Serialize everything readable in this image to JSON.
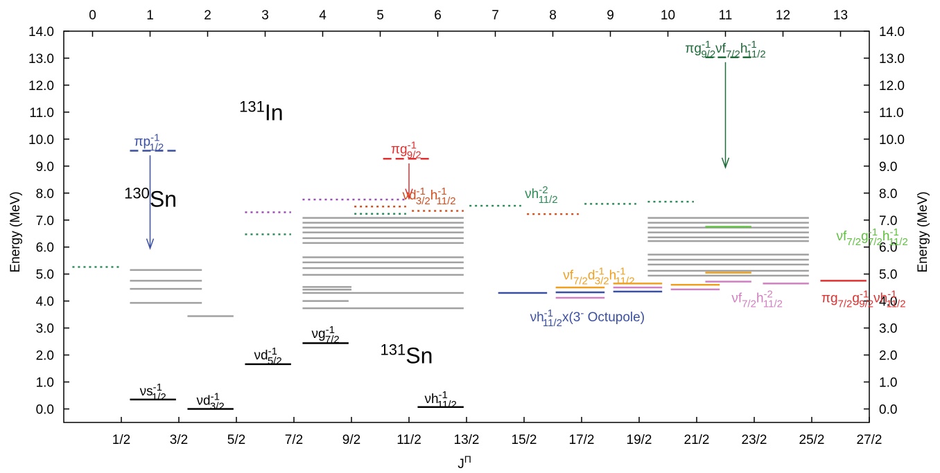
{
  "chart_data": {
    "type": "level-scheme",
    "xlabel": "J",
    "xlabel_sup": "Π",
    "ylabel": "Energy (MeV)",
    "ylim": [
      -0.5,
      14.0
    ],
    "bottom_x_ticks": [
      "1/2",
      "3/2",
      "5/2",
      "7/2",
      "9/2",
      "11/2",
      "13/2",
      "15/2",
      "17/2",
      "19/2",
      "21/2",
      "23/2",
      "25/2",
      "27/2"
    ],
    "top_x_ticks": [
      "0",
      "1",
      "2",
      "3",
      "4",
      "5",
      "6",
      "7",
      "8",
      "9",
      "10",
      "11",
      "12",
      "13"
    ],
    "y_ticks": [
      "0.0",
      "1.0",
      "2.0",
      "3.0",
      "4.0",
      "5.0",
      "6.0",
      "7.0",
      "8.0",
      "9.0",
      "10.0",
      "11.0",
      "12.0",
      "13.0",
      "14.0"
    ],
    "colors": {
      "black": "#000000",
      "gray": "#a0a0a0",
      "blue": "#3b4fa0",
      "red": "#e03030",
      "darkgreen": "#1f6b3a",
      "teal": "#2e8b57",
      "purple": "#9b4fb5",
      "brown": "#d05020",
      "orange": "#f0a020",
      "pink": "#d080c0",
      "lightgreen": "#60c040"
    },
    "nuclide_labels": [
      {
        "id": "in131",
        "mass": "131",
        "element": "In",
        "x": 3.05,
        "y": 10.7
      },
      {
        "id": "sn130",
        "mass": "130",
        "element": "Sn",
        "x": 1.05,
        "y": 7.5
      },
      {
        "id": "sn131",
        "mass": "131",
        "element": "Sn",
        "x": 5.5,
        "y": 1.7
      }
    ],
    "levels": [
      {
        "x1": 1.15,
        "x2": 1.95,
        "y": 0.35,
        "color": "black",
        "style": "solid",
        "width": 2.5
      },
      {
        "x1": 2.15,
        "x2": 2.95,
        "y": 0.0,
        "color": "black",
        "style": "solid",
        "width": 2.5
      },
      {
        "x1": 3.15,
        "x2": 3.95,
        "y": 1.66,
        "color": "black",
        "style": "solid",
        "width": 2.5
      },
      {
        "x1": 4.15,
        "x2": 4.95,
        "y": 2.44,
        "color": "black",
        "style": "solid",
        "width": 2.5
      },
      {
        "x1": 6.15,
        "x2": 6.95,
        "y": 0.07,
        "color": "black",
        "style": "solid",
        "width": 2.5
      },
      {
        "x1": 1.15,
        "x2": 2.4,
        "y": 5.15,
        "color": "gray",
        "style": "solid",
        "width": 2.5
      },
      {
        "x1": 1.15,
        "x2": 2.4,
        "y": 4.75,
        "color": "gray",
        "style": "solid",
        "width": 2.5
      },
      {
        "x1": 1.15,
        "x2": 2.4,
        "y": 4.45,
        "color": "gray",
        "style": "solid",
        "width": 2.5
      },
      {
        "x1": 1.15,
        "x2": 2.4,
        "y": 3.93,
        "color": "gray",
        "style": "solid",
        "width": 2.5
      },
      {
        "x1": 2.15,
        "x2": 2.95,
        "y": 3.44,
        "color": "gray",
        "style": "solid",
        "width": 2.5
      },
      {
        "x1": 4.15,
        "x2": 6.95,
        "y": 7.08,
        "color": "gray",
        "style": "solid",
        "width": 2.5
      },
      {
        "x1": 4.15,
        "x2": 6.95,
        "y": 6.9,
        "color": "gray",
        "style": "solid",
        "width": 2.5
      },
      {
        "x1": 4.15,
        "x2": 6.95,
        "y": 6.72,
        "color": "gray",
        "style": "solid",
        "width": 2.5
      },
      {
        "x1": 4.15,
        "x2": 6.95,
        "y": 6.54,
        "color": "gray",
        "style": "solid",
        "width": 2.5
      },
      {
        "x1": 4.15,
        "x2": 6.95,
        "y": 6.33,
        "color": "gray",
        "style": "solid",
        "width": 2.5
      },
      {
        "x1": 4.15,
        "x2": 6.95,
        "y": 6.15,
        "color": "gray",
        "style": "solid",
        "width": 2.5
      },
      {
        "x1": 4.15,
        "x2": 6.95,
        "y": 5.62,
        "color": "gray",
        "style": "solid",
        "width": 2.5
      },
      {
        "x1": 4.15,
        "x2": 6.95,
        "y": 5.43,
        "color": "gray",
        "style": "solid",
        "width": 2.5
      },
      {
        "x1": 4.15,
        "x2": 6.95,
        "y": 5.22,
        "color": "gray",
        "style": "solid",
        "width": 2.5
      },
      {
        "x1": 4.15,
        "x2": 6.95,
        "y": 4.97,
        "color": "gray",
        "style": "solid",
        "width": 2.5
      },
      {
        "x1": 4.15,
        "x2": 5.0,
        "y": 4.52,
        "color": "gray",
        "style": "solid",
        "width": 2.5
      },
      {
        "x1": 4.15,
        "x2": 5.0,
        "y": 4.42,
        "color": "gray",
        "style": "solid",
        "width": 2.5
      },
      {
        "x1": 4.15,
        "x2": 6.95,
        "y": 4.3,
        "color": "gray",
        "style": "solid",
        "width": 2.5
      },
      {
        "x1": 4.15,
        "x2": 4.95,
        "y": 4.0,
        "color": "gray",
        "style": "solid",
        "width": 2.5
      },
      {
        "x1": 4.15,
        "x2": 6.95,
        "y": 3.73,
        "color": "gray",
        "style": "solid",
        "width": 2.5
      },
      {
        "x1": 10.15,
        "x2": 12.95,
        "y": 7.08,
        "color": "gray",
        "style": "solid",
        "width": 2.5
      },
      {
        "x1": 10.15,
        "x2": 12.95,
        "y": 6.9,
        "color": "gray",
        "style": "solid",
        "width": 2.5
      },
      {
        "x1": 10.15,
        "x2": 12.95,
        "y": 6.72,
        "color": "gray",
        "style": "solid",
        "width": 2.5
      },
      {
        "x1": 10.15,
        "x2": 12.95,
        "y": 6.54,
        "color": "gray",
        "style": "solid",
        "width": 2.5
      },
      {
        "x1": 10.15,
        "x2": 12.95,
        "y": 6.36,
        "color": "gray",
        "style": "solid",
        "width": 2.5
      },
      {
        "x1": 10.15,
        "x2": 12.95,
        "y": 6.22,
        "color": "gray",
        "style": "solid",
        "width": 2.5
      },
      {
        "x1": 10.15,
        "x2": 12.95,
        "y": 5.72,
        "color": "gray",
        "style": "solid",
        "width": 2.5
      },
      {
        "x1": 10.15,
        "x2": 12.95,
        "y": 5.53,
        "color": "gray",
        "style": "solid",
        "width": 2.5
      },
      {
        "x1": 10.15,
        "x2": 12.95,
        "y": 5.35,
        "color": "gray",
        "style": "solid",
        "width": 2.5
      },
      {
        "x1": 10.15,
        "x2": 12.95,
        "y": 5.12,
        "color": "gray",
        "style": "solid",
        "width": 2.5
      },
      {
        "x1": 10.15,
        "x2": 12.95,
        "y": 4.94,
        "color": "gray",
        "style": "solid",
        "width": 2.5
      },
      {
        "x1": 1.15,
        "x2": 1.95,
        "y": 9.57,
        "color": "blue",
        "style": "dashed",
        "width": 2.5
      },
      {
        "x1": 5.55,
        "x2": 6.4,
        "y": 9.27,
        "color": "red",
        "style": "dashed",
        "width": 2.5
      },
      {
        "x1": 11.15,
        "x2": 11.95,
        "y": 13.03,
        "color": "darkgreen",
        "style": "dashed",
        "width": 2.5
      },
      {
        "x1": 0.15,
        "x2": 1.0,
        "y": 5.26,
        "color": "teal",
        "style": "dotted",
        "width": 2.5
      },
      {
        "x1": 3.15,
        "x2": 3.95,
        "y": 6.47,
        "color": "teal",
        "style": "dotted",
        "width": 2.5
      },
      {
        "x1": 3.15,
        "x2": 3.95,
        "y": 7.29,
        "color": "purple",
        "style": "dotted",
        "width": 2.5
      },
      {
        "x1": 4.15,
        "x2": 5.95,
        "y": 7.76,
        "color": "purple",
        "style": "dotted",
        "width": 2.5
      },
      {
        "x1": 5.05,
        "x2": 5.95,
        "y": 7.5,
        "color": "brown",
        "style": "dotted",
        "width": 2.5
      },
      {
        "x1": 5.05,
        "x2": 5.95,
        "y": 7.23,
        "color": "teal",
        "style": "dotted",
        "width": 2.5
      },
      {
        "x1": 6.05,
        "x2": 6.95,
        "y": 7.34,
        "color": "brown",
        "style": "dotted",
        "width": 2.5
      },
      {
        "x1": 7.05,
        "x2": 7.95,
        "y": 7.53,
        "color": "teal",
        "style": "dotted",
        "width": 2.5
      },
      {
        "x1": 8.05,
        "x2": 8.95,
        "y": 7.22,
        "color": "brown",
        "style": "dotted",
        "width": 2.5
      },
      {
        "x1": 9.05,
        "x2": 9.95,
        "y": 7.6,
        "color": "teal",
        "style": "dotted",
        "width": 2.5
      },
      {
        "x1": 10.15,
        "x2": 10.95,
        "y": 7.68,
        "color": "teal",
        "style": "dotted",
        "width": 2.5
      },
      {
        "x1": 7.55,
        "x2": 8.4,
        "y": 4.3,
        "color": "blue",
        "style": "solid",
        "width": 2.5
      },
      {
        "x1": 8.55,
        "x2": 9.4,
        "y": 4.5,
        "color": "orange",
        "style": "solid",
        "width": 2.5
      },
      {
        "x1": 8.55,
        "x2": 9.4,
        "y": 4.32,
        "color": "blue",
        "style": "solid",
        "width": 2.5
      },
      {
        "x1": 8.55,
        "x2": 9.4,
        "y": 4.12,
        "color": "pink",
        "style": "solid",
        "width": 2.5
      },
      {
        "x1": 9.55,
        "x2": 10.4,
        "y": 4.65,
        "color": "orange",
        "style": "solid",
        "width": 2.5
      },
      {
        "x1": 9.55,
        "x2": 10.4,
        "y": 4.5,
        "color": "pink",
        "style": "solid",
        "width": 2.5
      },
      {
        "x1": 9.55,
        "x2": 10.4,
        "y": 4.35,
        "color": "blue",
        "style": "solid",
        "width": 2.5
      },
      {
        "x1": 10.55,
        "x2": 11.4,
        "y": 4.6,
        "color": "orange",
        "style": "solid",
        "width": 2.5
      },
      {
        "x1": 10.55,
        "x2": 11.4,
        "y": 4.43,
        "color": "pink",
        "style": "solid",
        "width": 2.5
      },
      {
        "x1": 11.15,
        "x2": 11.95,
        "y": 6.75,
        "color": "lightgreen",
        "style": "solid",
        "width": 2.5
      },
      {
        "x1": 11.15,
        "x2": 11.95,
        "y": 5.05,
        "color": "orange",
        "style": "solid",
        "width": 2.5
      },
      {
        "x1": 11.15,
        "x2": 11.95,
        "y": 4.72,
        "color": "pink",
        "style": "solid",
        "width": 2.5
      },
      {
        "x1": 12.15,
        "x2": 12.95,
        "y": 4.65,
        "color": "pink",
        "style": "solid",
        "width": 2.5
      },
      {
        "x1": 13.15,
        "x2": 13.95,
        "y": 4.75,
        "color": "red",
        "style": "solid",
        "width": 2.5
      }
    ],
    "arrows": [
      {
        "x": 1.5,
        "y1": 9.4,
        "y2": 5.95,
        "color": "blue"
      },
      {
        "x": 6.0,
        "y1": 9.1,
        "y2": 7.8,
        "color": "red"
      },
      {
        "x": 11.5,
        "y1": 12.85,
        "y2": 8.95,
        "color": "darkgreen"
      }
    ],
    "level_labels": [
      {
        "id": "nu-s12",
        "color": "black",
        "x": 1.55,
        "y": 0.5,
        "parts": [
          [
            "ν",
            ""
          ],
          [
            "s",
            "n"
          ],
          [
            "-1",
            "sup"
          ],
          [
            "1/2",
            "sub"
          ]
        ]
      },
      {
        "id": "nu-d32",
        "color": "black",
        "x": 2.55,
        "y": 0.15,
        "parts": [
          [
            "ν",
            ""
          ],
          [
            "d",
            "n"
          ],
          [
            "-1",
            "sup"
          ],
          [
            "3/2",
            "sub"
          ]
        ]
      },
      {
        "id": "nu-d52",
        "color": "black",
        "x": 3.55,
        "y": 1.83,
        "parts": [
          [
            "ν",
            ""
          ],
          [
            "d",
            "n"
          ],
          [
            "-1",
            "sup"
          ],
          [
            "5/2",
            "sub"
          ]
        ]
      },
      {
        "id": "nu-g72",
        "color": "black",
        "x": 4.55,
        "y": 2.63,
        "parts": [
          [
            "ν",
            ""
          ],
          [
            "g",
            "n"
          ],
          [
            "-1",
            "sup"
          ],
          [
            "7/2",
            "sub"
          ]
        ]
      },
      {
        "id": "nu-h112",
        "color": "black",
        "x": 6.55,
        "y": 0.22,
        "parts": [
          [
            "ν",
            ""
          ],
          [
            "h",
            "n"
          ],
          [
            "-1",
            "sup"
          ],
          [
            "11/2",
            "sub"
          ]
        ]
      },
      {
        "id": "pi-p12",
        "color": "blue",
        "x": 1.48,
        "y": 9.75,
        "parts": [
          [
            "π",
            ""
          ],
          [
            "p",
            "n"
          ],
          [
            "-1",
            "sup"
          ],
          [
            "1/2",
            "sub"
          ]
        ]
      },
      {
        "id": "pi-g92",
        "color": "red",
        "x": 5.95,
        "y": 9.47,
        "parts": [
          [
            "π",
            ""
          ],
          [
            "g",
            "n"
          ],
          [
            "-1",
            "sup"
          ],
          [
            "9/2",
            "sub"
          ]
        ]
      },
      {
        "id": "nu-d32-h112",
        "color": "brown",
        "x": 6.35,
        "y": 7.76,
        "parts": [
          [
            "ν",
            ""
          ],
          [
            "d",
            "n"
          ],
          [
            "-1",
            "sup"
          ],
          [
            "3/2",
            "sub"
          ],
          [
            "h",
            "n"
          ],
          [
            "-1",
            "sup"
          ],
          [
            "11/2",
            "sub"
          ]
        ]
      },
      {
        "id": "nu-h112-2",
        "color": "teal",
        "x": 8.3,
        "y": 7.82,
        "parts": [
          [
            "ν",
            ""
          ],
          [
            "h",
            "n"
          ],
          [
            "-2",
            "sup"
          ],
          [
            "11/2",
            "sub"
          ]
        ]
      },
      {
        "id": "pi-g92-nu-f72-h112",
        "color": "darkgreen",
        "x": 11.5,
        "y": 13.2,
        "parts": [
          [
            "π",
            ""
          ],
          [
            "g",
            "n"
          ],
          [
            "-1",
            "sup"
          ],
          [
            "9/2",
            "sub"
          ],
          [
            "ν",
            ""
          ],
          [
            "f",
            "n"
          ],
          [
            "7/2",
            "sub"
          ],
          [
            "h",
            "n"
          ],
          [
            "-1",
            "sup"
          ],
          [
            "11/2",
            "sub"
          ]
        ]
      },
      {
        "id": "nu-f72-d32-h112",
        "color": "orange",
        "x": 9.3,
        "y": 4.8,
        "parts": [
          [
            "ν",
            ""
          ],
          [
            "f",
            "n"
          ],
          [
            "7/2",
            "sub"
          ],
          [
            "d",
            "n"
          ],
          [
            "-1",
            "sup"
          ],
          [
            "3/2",
            "sub"
          ],
          [
            "h",
            "n"
          ],
          [
            "-1",
            "sup"
          ],
          [
            "11/2",
            "sub"
          ]
        ]
      },
      {
        "id": "nu-h112-oct",
        "color": "blue",
        "x": 9.1,
        "y": 3.25,
        "parts": [
          [
            "ν",
            ""
          ],
          [
            "h",
            "n"
          ],
          [
            "-1",
            "sup"
          ],
          [
            "11/2",
            "sub"
          ],
          [
            "x(3",
            ""
          ],
          [
            "-",
            "sup"
          ],
          [
            " Octupole)",
            ""
          ]
        ]
      },
      {
        "id": "nu-f72-h112-2",
        "color": "pink",
        "x": 12.05,
        "y": 3.95,
        "parts": [
          [
            "ν",
            ""
          ],
          [
            "f",
            "n"
          ],
          [
            "7/2",
            "sub"
          ],
          [
            "h",
            "n"
          ],
          [
            "-2",
            "sup"
          ],
          [
            "11/2",
            "sub"
          ]
        ]
      },
      {
        "id": "nu-f72-g72-h112",
        "color": "lightgreen",
        "x": 14.05,
        "y": 6.25,
        "parts": [
          [
            "ν",
            ""
          ],
          [
            "f",
            "n"
          ],
          [
            "7/2",
            "sub"
          ],
          [
            "g",
            "n"
          ],
          [
            "-1",
            "sup"
          ],
          [
            "7/2",
            "sub"
          ],
          [
            "h",
            "n"
          ],
          [
            "-1",
            "sup"
          ],
          [
            "11/2",
            "sub"
          ]
        ]
      },
      {
        "id": "pi-g72-g92-nu-h112",
        "color": "red",
        "x": 13.9,
        "y": 3.95,
        "parts": [
          [
            "π",
            ""
          ],
          [
            "g",
            "n"
          ],
          [
            "7/2",
            "sub"
          ],
          [
            "g",
            "n"
          ],
          [
            "-1",
            "sup"
          ],
          [
            "9/2",
            "sub"
          ],
          [
            "ν",
            ""
          ],
          [
            "h",
            "n"
          ],
          [
            "-1",
            "sup"
          ],
          [
            "11/2",
            "sub"
          ]
        ]
      }
    ]
  }
}
